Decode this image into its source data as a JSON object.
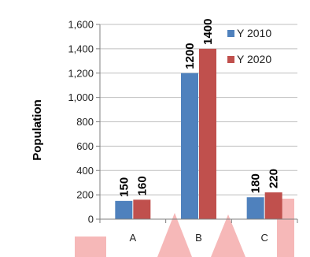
{
  "chart_data": {
    "type": "bar",
    "categories": [
      "A",
      "B",
      "C"
    ],
    "series": [
      {
        "name": "Y 2010",
        "values": [
          150,
          1200,
          180
        ],
        "labels": [
          "150",
          "1200",
          "180"
        ],
        "color": "#4f81bd"
      },
      {
        "name": "Y 2020",
        "values": [
          160,
          1400,
          220
        ],
        "labels": [
          "160",
          "1400",
          "220"
        ],
        "color": "#c0504d"
      }
    ],
    "ylabel": "Population",
    "xlabel": "",
    "ylim": [
      0,
      1600
    ],
    "yticks": [
      0,
      200,
      400,
      600,
      800,
      1000,
      1200,
      1400,
      1600
    ],
    "ytick_labels": [
      "0",
      "200",
      "400",
      "600",
      "800",
      "1,000",
      "1,200",
      "1,400",
      "1,600"
    ],
    "grid": true,
    "legend_position": "top-right"
  },
  "colors": {
    "grid": "#bfbfbf",
    "axis": "#7f7f7f",
    "watermark": "#f6b8b8"
  }
}
